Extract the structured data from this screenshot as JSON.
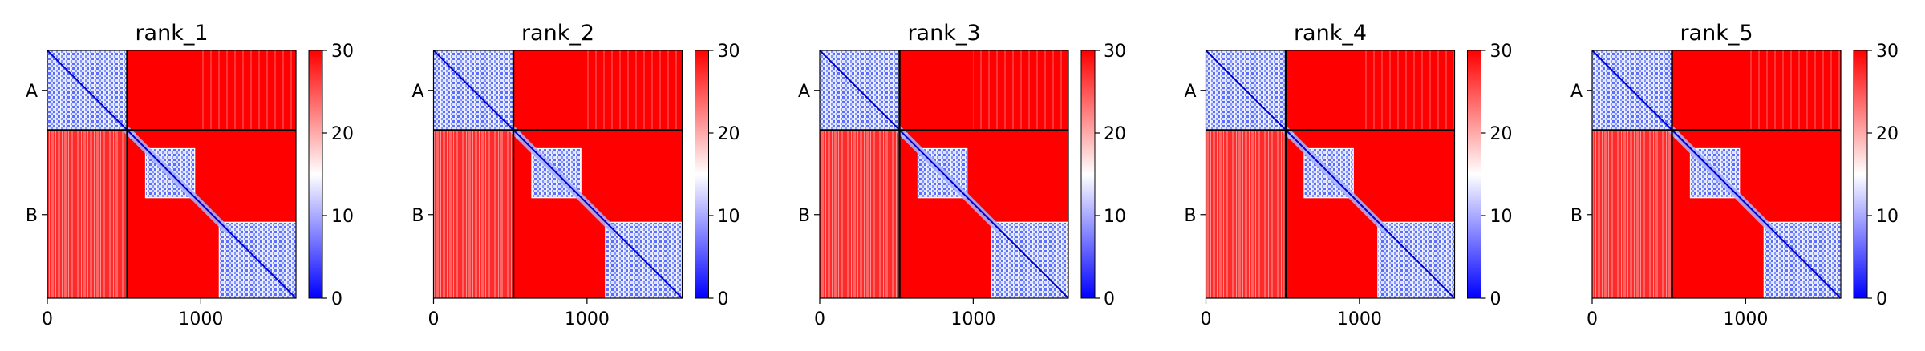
{
  "chart_data": [
    {
      "type": "heatmap",
      "title": "rank_1",
      "xlabel": "",
      "ylabel": "",
      "x_ticks": [
        0,
        1000
      ],
      "x_range": [
        0,
        1620
      ],
      "y_ticks": [
        "A",
        "B"
      ],
      "chain_boundary": 520,
      "chains": [
        {
          "label": "A",
          "start": 0,
          "end": 520
        },
        {
          "label": "B",
          "start": 520,
          "end": 1620
        }
      ],
      "domains": [
        [
          0,
          520
        ],
        [
          540,
          570
        ],
        [
          640,
          960
        ],
        [
          1120,
          1620
        ]
      ],
      "colorbar": {
        "min": 0,
        "max": 30,
        "ticks": [
          0,
          10,
          20,
          30
        ],
        "colors": [
          "#0000ff",
          "#ffffff",
          "#ff0000"
        ]
      },
      "grid": false
    },
    {
      "type": "heatmap",
      "title": "rank_2",
      "xlabel": "",
      "ylabel": "",
      "x_ticks": [
        0,
        1000
      ],
      "x_range": [
        0,
        1620
      ],
      "y_ticks": [
        "A",
        "B"
      ],
      "chain_boundary": 520,
      "chains": [
        {
          "label": "A",
          "start": 0,
          "end": 520
        },
        {
          "label": "B",
          "start": 520,
          "end": 1620
        }
      ],
      "domains": [
        [
          0,
          520
        ],
        [
          540,
          570
        ],
        [
          640,
          960
        ],
        [
          1120,
          1620
        ]
      ],
      "colorbar": {
        "min": 0,
        "max": 30,
        "ticks": [
          0,
          10,
          20,
          30
        ],
        "colors": [
          "#0000ff",
          "#ffffff",
          "#ff0000"
        ]
      },
      "grid": false
    },
    {
      "type": "heatmap",
      "title": "rank_3",
      "xlabel": "",
      "ylabel": "",
      "x_ticks": [
        0,
        1000
      ],
      "x_range": [
        0,
        1620
      ],
      "y_ticks": [
        "A",
        "B"
      ],
      "chain_boundary": 520,
      "chains": [
        {
          "label": "A",
          "start": 0,
          "end": 520
        },
        {
          "label": "B",
          "start": 520,
          "end": 1620
        }
      ],
      "domains": [
        [
          0,
          520
        ],
        [
          540,
          570
        ],
        [
          640,
          960
        ],
        [
          1120,
          1620
        ]
      ],
      "colorbar": {
        "min": 0,
        "max": 30,
        "ticks": [
          0,
          10,
          20,
          30
        ],
        "colors": [
          "#0000ff",
          "#ffffff",
          "#ff0000"
        ]
      },
      "grid": false
    },
    {
      "type": "heatmap",
      "title": "rank_4",
      "xlabel": "",
      "ylabel": "",
      "x_ticks": [
        0,
        1000
      ],
      "x_range": [
        0,
        1620
      ],
      "y_ticks": [
        "A",
        "B"
      ],
      "chain_boundary": 520,
      "chains": [
        {
          "label": "A",
          "start": 0,
          "end": 520
        },
        {
          "label": "B",
          "start": 520,
          "end": 1620
        }
      ],
      "domains": [
        [
          0,
          520
        ],
        [
          540,
          570
        ],
        [
          640,
          960
        ],
        [
          1120,
          1620
        ]
      ],
      "colorbar": {
        "min": 0,
        "max": 30,
        "ticks": [
          0,
          10,
          20,
          30
        ],
        "colors": [
          "#0000ff",
          "#ffffff",
          "#ff0000"
        ]
      },
      "grid": false
    },
    {
      "type": "heatmap",
      "title": "rank_5",
      "xlabel": "",
      "ylabel": "",
      "x_ticks": [
        0,
        1000
      ],
      "x_range": [
        0,
        1620
      ],
      "y_ticks": [
        "A",
        "B"
      ],
      "chain_boundary": 520,
      "chains": [
        {
          "label": "A",
          "start": 0,
          "end": 520
        },
        {
          "label": "B",
          "start": 520,
          "end": 1620
        }
      ],
      "domains": [
        [
          0,
          520
        ],
        [
          540,
          570
        ],
        [
          640,
          960
        ],
        [
          1120,
          1620
        ]
      ],
      "colorbar": {
        "min": 0,
        "max": 30,
        "ticks": [
          0,
          10,
          20,
          30
        ],
        "colors": [
          "#0000ff",
          "#ffffff",
          "#ff0000"
        ]
      },
      "grid": false
    }
  ]
}
